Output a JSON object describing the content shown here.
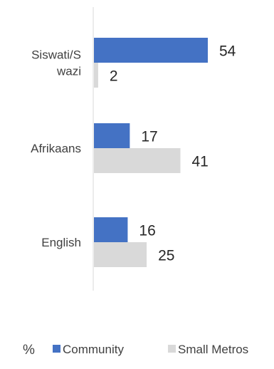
{
  "chart_data": {
    "type": "bar",
    "orientation": "horizontal",
    "categories": [
      "Siswati/Swazi",
      "Afrikaans",
      "English"
    ],
    "category_label_lines": [
      [
        "Siswati/S",
        "wazi"
      ],
      [
        "Afrikaans"
      ],
      [
        "English"
      ]
    ],
    "series": [
      {
        "name": "Community",
        "values": [
          54,
          17,
          16
        ],
        "color": "#4472C4"
      },
      {
        "name": "Small Metros",
        "values": [
          2,
          41,
          25
        ],
        "color": "#D9D9D9"
      }
    ],
    "unit": "%",
    "xlim": [
      0,
      60
    ],
    "grid": false,
    "data_labels": true,
    "legend": {
      "placement": "bottom"
    },
    "axis_color": "#D9D9D9"
  }
}
